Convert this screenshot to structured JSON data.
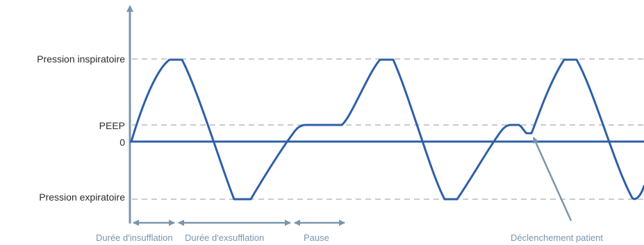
{
  "axis_labels": {
    "inspiratory": "Pression inspiratoire",
    "peep": "PEEP",
    "zero": "0",
    "expiratory": "Pression expiratoire"
  },
  "phase_labels": {
    "insufflation": "Durée d'insufflation",
    "exsufflation": "Durée d'exsufflation",
    "pause": "Pause"
  },
  "annotation": {
    "patient_trigger": "Déclenchement patient"
  },
  "colors": {
    "waveform": "#2e5fa7",
    "axis": "#7a95ad",
    "guide": "#8e9aa6",
    "label": "#2b2b2b"
  }
}
